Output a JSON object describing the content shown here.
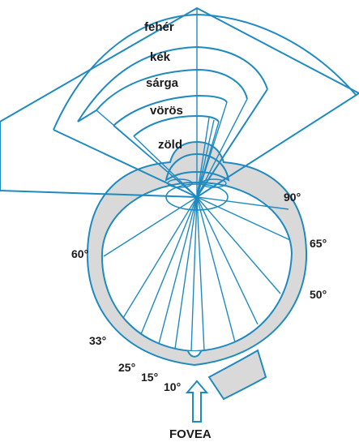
{
  "diagram": {
    "fields": [
      {
        "id": "white",
        "label": "fehér"
      },
      {
        "id": "blue",
        "label": "kék"
      },
      {
        "id": "yellow",
        "label": "sárga"
      },
      {
        "id": "red",
        "label": "vörös"
      },
      {
        "id": "green",
        "label": "zöld"
      }
    ],
    "angle_labels": {
      "a90": "90°",
      "a65": "65°",
      "a60": "60°",
      "a50": "50°",
      "a33": "33°",
      "a25": "25°",
      "a15": "15°",
      "a10": "10°"
    },
    "fovea_label": "FOVEA",
    "colors": {
      "line": "#1f8ac0",
      "eye_fill": "#d9d9d9",
      "text": "#1a1a1a",
      "background": "#ffffff"
    }
  }
}
